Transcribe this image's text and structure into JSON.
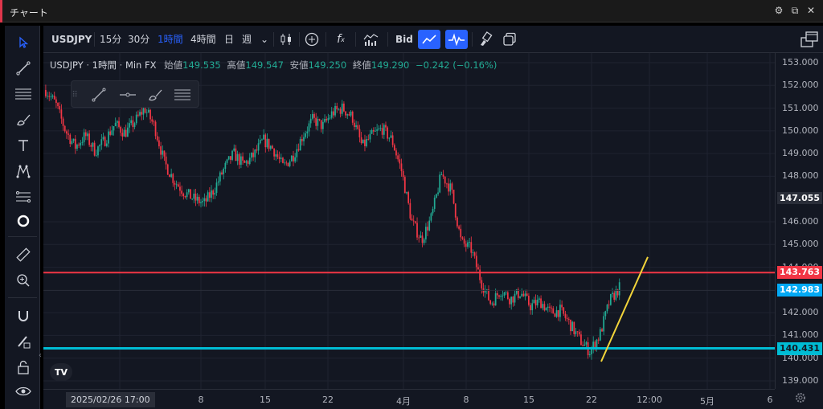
{
  "window": {
    "title": "チャート",
    "icons": [
      "gear-icon",
      "popout-icon",
      "close-icon"
    ]
  },
  "toolbar": {
    "symbol": "USDJPY",
    "intervals": [
      "15分",
      "30分",
      "1時間",
      "4時間",
      "日",
      "週"
    ],
    "active_interval": "1時間",
    "price_source": "Bid"
  },
  "left_tools": [
    "cursor-icon",
    "trendline-icon",
    "horizontal-lines-icon",
    "brush-icon",
    "text-icon",
    "pattern-icon",
    "fib-icon",
    "circle-icon",
    "ruler-icon",
    "zoom-icon",
    "magnet-icon",
    "lock-pencil-icon",
    "lock-icon",
    "eye-icon"
  ],
  "legend": {
    "symbol": "USDJPY",
    "interval": "1時間",
    "broker": "Min FX",
    "open_label": "始値",
    "open": "149.535",
    "high_label": "高値",
    "high": "149.547",
    "low_label": "安値",
    "low": "149.250",
    "close_label": "終値",
    "close": "149.290",
    "change": "−0.242 (−0.16%)"
  },
  "floating_toolbar": [
    "trendline-icon",
    "horizontal-ray-icon",
    "brush-icon",
    "lines-icon"
  ],
  "colors": {
    "background": "#131722",
    "up": "#22ab94",
    "down": "#f23645",
    "resistance": "#f23645",
    "support": "#00bcd4",
    "trend": "#f2d43a",
    "accent": "#2962ff"
  },
  "chart_data": {
    "type": "candlestick",
    "ylim": [
      139.0,
      153.0
    ],
    "y_ticks": [
      "153.000",
      "152.000",
      "151.000",
      "150.000",
      "149.000",
      "148.000",
      "147.055",
      "146.000",
      "145.000",
      "144.000",
      "142.000",
      "141.000",
      "140.000",
      "139.000"
    ],
    "x_ticks": [
      "2025/02/26  17:00",
      "8",
      "15",
      "22",
      "4月",
      "8",
      "15",
      "22",
      "12:00",
      "5月",
      "6"
    ],
    "horizontal_lines": [
      {
        "price": 143.763,
        "label": "143.763",
        "color": "#f23645"
      },
      {
        "price": 140.431,
        "label": "140.431",
        "color": "#00bcd4"
      }
    ],
    "price_labels": [
      {
        "price": 147.055,
        "label": "147.055",
        "color": "#2a2e39"
      },
      {
        "price": 142.983,
        "label": "142.983",
        "color": "#03a9f4"
      }
    ],
    "trendline": {
      "from": [
        139.85
      ],
      "to": [
        144.45
      ]
    },
    "approx_path": [
      151.8,
      151.2,
      150.0,
      149.3,
      149.8,
      149.1,
      149.6,
      150.3,
      149.9,
      150.4,
      151.0,
      150.2,
      148.6,
      147.8,
      147.3,
      147.0,
      146.8,
      147.4,
      148.3,
      149.0,
      148.5,
      148.9,
      149.6,
      149.2,
      148.4,
      148.9,
      149.8,
      150.5,
      150.2,
      150.8,
      151.0,
      150.6,
      149.3,
      149.8,
      150.1,
      149.6,
      148.2,
      146.0,
      145.2,
      146.2,
      148.1,
      147.4,
      145.1,
      144.8,
      143.4,
      142.4,
      143.0,
      142.6,
      142.9,
      142.3,
      142.5,
      142.0,
      142.1,
      141.5,
      140.8,
      140.3,
      141.0,
      142.5,
      143.1
    ]
  }
}
